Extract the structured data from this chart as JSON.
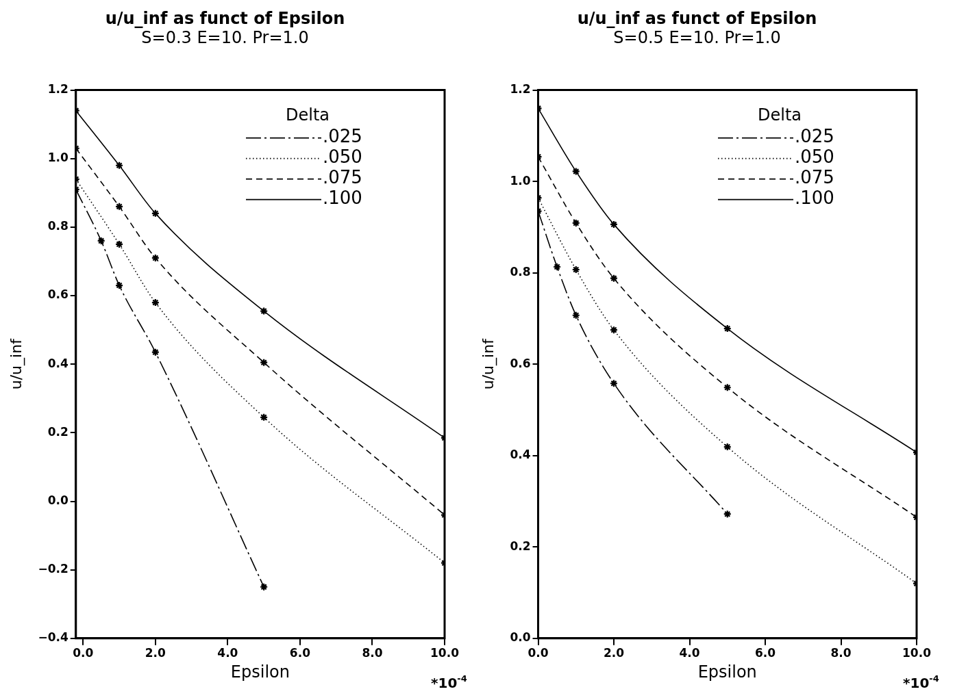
{
  "chart_data": [
    {
      "type": "line",
      "title": "u/u_inf as funct of Epsilon",
      "subtitle": "S=0.3 E=10. Pr=1.0",
      "xlabel": "Epsilon",
      "ylabel": "u/u_inf",
      "legend_title": "Delta",
      "legend": "top right",
      "marker": "cross",
      "grid": false,
      "xlim": [
        -0.2,
        10.0
      ],
      "xticks": [
        {
          "value": 0,
          "label": "0.0"
        },
        {
          "value": 2,
          "label": "2.0"
        },
        {
          "value": 4,
          "label": "4.0"
        },
        {
          "value": 6,
          "label": "6.0"
        },
        {
          "value": 8,
          "label": "8.0"
        },
        {
          "value": 10,
          "label": "10.0"
        }
      ],
      "ylim": [
        -0.4,
        1.2
      ],
      "yticks": [
        {
          "value": -0.4,
          "label": "−0.4"
        },
        {
          "value": -0.2,
          "label": "−0.2"
        },
        {
          "value": 0,
          "label": "0.0"
        },
        0.2,
        0.4,
        0.6,
        0.8,
        {
          "value": 1,
          "label": "1.0"
        },
        1.2
      ],
      "annotations": [
        "*10$^{-4}$"
      ],
      "series": [
        {
          "name": ".025",
          "color": "#000000",
          "line_style": "dashdot",
          "x": [
            -0.2,
            0.5,
            1,
            2,
            5
          ],
          "values": [
            0.91,
            0.76,
            0.63,
            0.435,
            -0.25
          ]
        },
        {
          "name": ".050",
          "color": "#000000",
          "line_style": "dotted",
          "x": [
            -0.2,
            1,
            2,
            5,
            10
          ],
          "values": [
            0.94,
            0.75,
            0.58,
            0.245,
            -0.18
          ]
        },
        {
          "name": ".075",
          "color": "#000000",
          "line_style": "dashed",
          "x": [
            -0.2,
            1,
            2,
            5,
            10
          ],
          "values": [
            1.03,
            0.86,
            0.71,
            0.405,
            -0.04
          ]
        },
        {
          "name": ".100",
          "color": "#000000",
          "line_style": "solid",
          "x": [
            -0.2,
            1,
            2,
            5,
            10
          ],
          "values": [
            1.14,
            0.98,
            0.84,
            0.555,
            0.185
          ]
        }
      ]
    },
    {
      "type": "line",
      "title": "u/u_inf as funct of Epsilon",
      "subtitle": "S=0.5 E=10. Pr=1.0",
      "xlabel": "Epsilon",
      "ylabel": "u/u_inf",
      "legend_title": "Delta",
      "legend": "top right",
      "marker": "cross",
      "grid": false,
      "xlim": [
        0,
        10.0
      ],
      "xticks": [
        {
          "value": 0,
          "label": "0.0"
        },
        {
          "value": 2,
          "label": "2.0"
        },
        {
          "value": 4,
          "label": "4.0"
        },
        {
          "value": 6,
          "label": "6.0"
        },
        {
          "value": 8,
          "label": "8.0"
        },
        {
          "value": 10,
          "label": "10.0"
        }
      ],
      "ylim": [
        0,
        1.2
      ],
      "yticks": [
        {
          "value": 0,
          "label": "0.0"
        },
        0.2,
        0.4,
        0.6,
        0.8,
        {
          "value": 1,
          "label": "1.0"
        },
        1.2
      ],
      "annotations": [
        "*10$^{-4}$"
      ],
      "series": [
        {
          "name": ".025",
          "color": "#000000",
          "line_style": "dashdot",
          "x": [
            0,
            0.5,
            1,
            2,
            5
          ],
          "values": [
            0.935,
            0.813,
            0.707,
            0.558,
            0.272
          ]
        },
        {
          "name": ".050",
          "color": "#000000",
          "line_style": "dotted",
          "x": [
            0,
            1,
            2,
            5,
            10
          ],
          "values": [
            0.964,
            0.807,
            0.675,
            0.419,
            0.12
          ]
        },
        {
          "name": ".075",
          "color": "#000000",
          "line_style": "dashed",
          "x": [
            0,
            1,
            2,
            5,
            10
          ],
          "values": [
            1.054,
            0.909,
            0.788,
            0.549,
            0.265
          ]
        },
        {
          "name": ".100",
          "color": "#000000",
          "line_style": "solid",
          "x": [
            0,
            1,
            2,
            5,
            10
          ],
          "values": [
            1.16,
            1.022,
            0.906,
            0.678,
            0.407
          ]
        }
      ]
    }
  ]
}
